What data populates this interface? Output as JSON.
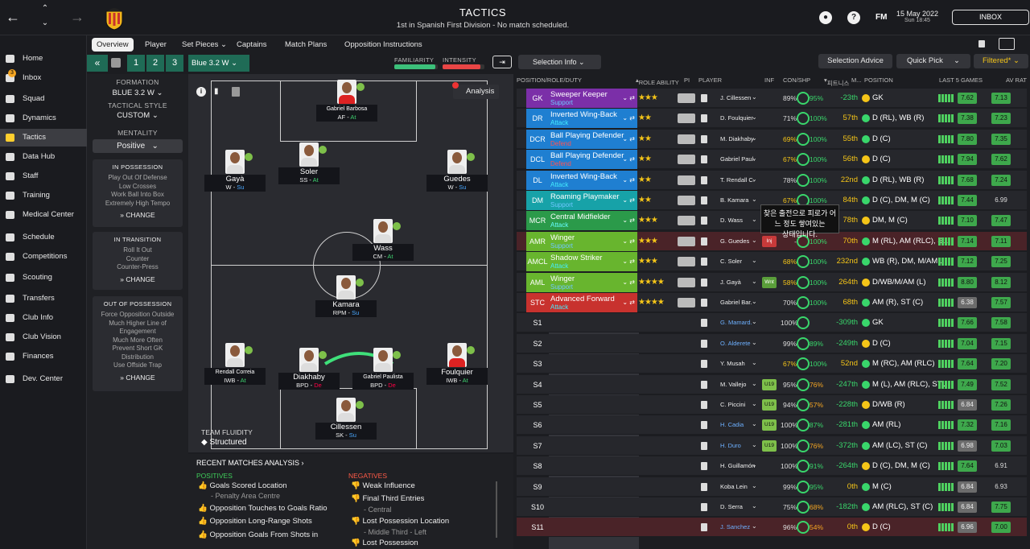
{
  "header": {
    "title": "TACTICS",
    "subtitle": "1st in Spanish First Division - No match scheduled.",
    "date": "15 May 2022",
    "time": "Sun 18:45",
    "fm": "FM",
    "inbox": "INBOX"
  },
  "sidebar": [
    {
      "label": "Home"
    },
    {
      "label": "Inbox",
      "badge": "3"
    },
    {
      "label": "Squad"
    },
    {
      "label": "Dynamics"
    },
    {
      "label": "Tactics"
    },
    {
      "label": "Data Hub"
    },
    {
      "label": "Staff"
    },
    {
      "label": "Training"
    },
    {
      "label": "Medical Center"
    },
    {
      "label": "Schedule"
    },
    {
      "label": "Competitions"
    },
    {
      "label": "Scouting"
    },
    {
      "label": "Transfers"
    },
    {
      "label": "Club Info"
    },
    {
      "label": "Club Vision"
    },
    {
      "label": "Finances"
    },
    {
      "label": "Dev. Center"
    }
  ],
  "tabs": [
    "Overview",
    "Player",
    "Set Pieces",
    "Captains",
    "Match Plans",
    "Opposition Instructions"
  ],
  "tactic": {
    "n1": "1",
    "n2": "2",
    "n3": "3",
    "name": "Blue 3.2 W",
    "familiarity": "FAMILIARITY",
    "intensity": "INTENSITY",
    "familiarity_level": 0.95,
    "intensity_level": 0.9
  },
  "left": {
    "formation_lbl": "FORMATION",
    "formation": "BLUE 3.2 W",
    "style_lbl": "TACTICAL STYLE",
    "style": "CUSTOM",
    "mentality_lbl": "MENTALITY",
    "mentality": "Positive",
    "inpos_h": "IN POSSESSION",
    "inpos": [
      "Play Out Of Defense",
      "Low Crosses",
      "Work Ball Into Box",
      "Extremely High Tempo"
    ],
    "trans_h": "IN TRANSITION",
    "trans": [
      "Roll It Out",
      "Counter",
      "Counter-Press"
    ],
    "outpos_h": "OUT OF POSSESSION",
    "outpos": [
      "Force Opposition Outside",
      "Much Higher Line of",
      "Engagement",
      "Much More Often",
      "Prevent Short GK",
      "Distribution",
      "Use Offside Trap"
    ],
    "change": "CHANGE"
  },
  "pitch": {
    "analysis": "Analysis",
    "fluidity_lbl": "TEAM FLUIDITY",
    "fluidity": "Structured",
    "players": [
      {
        "name": "Gabriel Barbosa",
        "role": "AF",
        "duty": "At"
      },
      {
        "name": "Gayà",
        "role": "W",
        "duty": "Su"
      },
      {
        "name": "Soler",
        "role": "SS",
        "duty": "At"
      },
      {
        "name": "Guedes",
        "role": "W",
        "duty": "Su"
      },
      {
        "name": "Wass",
        "role": "CM",
        "duty": "At"
      },
      {
        "name": "Kamara",
        "role": "RPM",
        "duty": "Su"
      },
      {
        "name": "Rendall Correia",
        "role": "IWB",
        "duty": "At"
      },
      {
        "name": "Diakhaby",
        "role": "BPD",
        "duty": "De"
      },
      {
        "name": "Gabriel Paulista",
        "role": "BPD",
        "duty": "De"
      },
      {
        "name": "Foulquier",
        "role": "IWB",
        "duty": "At"
      },
      {
        "name": "Cillessen",
        "role": "SK",
        "duty": "Su"
      }
    ]
  },
  "recent": {
    "title": "RECENT MATCHES ANALYSIS",
    "pos_h": "POSITIVES",
    "neg_h": "NEGATIVES",
    "positives": [
      "Goals Scored Location",
      "Opposition Touches to Goals Ratio",
      "Opposition Long-Range Shots",
      "Opposition Goals From Shots in"
    ],
    "pos_sub": "- Penalty Area Centre",
    "negatives": [
      "Weak Influence",
      "Final Third Entries",
      "Lost Possession Location",
      "Lost Possession"
    ],
    "neg_sub1": "- Central",
    "neg_sub2": "- Middle Third - Left"
  },
  "right": {
    "selection_info": "Selection Info",
    "advice": "Selection Advice",
    "quick": "Quick Pick",
    "filtered": "Filtered*",
    "cols": {
      "c1": "POSITION/ROLE/DUTY",
      "c2": "ROLE ABILITY",
      "c3": "PI",
      "c4": "PLAYER",
      "c5": "INF",
      "c6": "CON/SHP",
      "c7": "피트니스",
      "c8": "M...",
      "c9": "POSITION",
      "c10": "LAST 5 GAMES",
      "c11": "AV RAT"
    },
    "tooltip1": "찾은 출전으로 피로가 어느 정도 쌓여있는",
    "tooltip2": "상태입니다."
  },
  "rows": [
    {
      "pos": "GK",
      "role": "Sweeper Keeper",
      "duty": "Support",
      "stars": "★★★",
      "player": "J. Cillessen",
      "inf": "",
      "con": "89%",
      "shp": "95%",
      "rank": "-23th",
      "pos_txt": "GK",
      "l5": "7.62",
      "av": "7.13",
      "color": "#7b2fa8",
      "dcol": "#6ec7ff"
    },
    {
      "pos": "DR",
      "role": "Inverted Wing-Back",
      "duty": "Attack",
      "stars": "★★",
      "player": "D. Foulquier",
      "inf": "",
      "con": "71%",
      "shp": "100%",
      "rank": "57th",
      "pos_txt": "D (RL), WB (R)",
      "l5": "7.38",
      "av": "7.23",
      "color": "#1f7fd1",
      "dcol": "#4ef"
    },
    {
      "pos": "DCR",
      "role": "Ball Playing Defender",
      "duty": "Defend",
      "stars": "★★",
      "player": "M. Diakhaby",
      "inf": "",
      "con": "69%",
      "shp": "100%",
      "rank": "55th",
      "pos_txt": "D (C)",
      "l5": "7.80",
      "av": "7.35",
      "color": "#1f7fd1",
      "dcol": "#ff5252"
    },
    {
      "pos": "DCL",
      "role": "Ball Playing Defender",
      "duty": "Defend",
      "stars": "★★",
      "player": "Gabriel Paul.",
      "inf": "",
      "con": "67%",
      "shp": "100%",
      "rank": "56th",
      "pos_txt": "D (C)",
      "l5": "7.94",
      "av": "7.62",
      "color": "#1f7fd1",
      "dcol": "#ff5252"
    },
    {
      "pos": "DL",
      "role": "Inverted Wing-Back",
      "duty": "Attack",
      "stars": "★★",
      "player": "T. Rendall C.",
      "inf": "",
      "con": "78%",
      "shp": "100%",
      "rank": "22nd",
      "pos_txt": "D (RL), WB (R)",
      "l5": "7.68",
      "av": "7.24",
      "color": "#1f7fd1",
      "dcol": "#4ef"
    },
    {
      "pos": "DM",
      "role": "Roaming Playmaker",
      "duty": "Support",
      "stars": "★★",
      "player": "B. Kamara",
      "inf": "",
      "con": "67%",
      "shp": "100%",
      "rank": "84th",
      "pos_txt": "D (C), DM, M (C)",
      "l5": "7.44",
      "av": "6.99",
      "color": "#17a2a8",
      "dcol": "#6ec7ff"
    },
    {
      "pos": "MCR",
      "role": "Central Midfielder",
      "duty": "Attack",
      "stars": "★★★",
      "player": "D. Wass",
      "inf": "",
      "con": "67%",
      "shp": "100%",
      "rank": "78th",
      "pos_txt": "DM, M (C)",
      "l5": "7.10",
      "av": "7.47",
      "color": "#2b9a4a",
      "dcol": "#6ff"
    },
    {
      "pos": "AMR",
      "role": "Winger",
      "duty": "Support",
      "stars": "★★★",
      "player": "G. Guedes",
      "inf": "Inj",
      "con": "-",
      "shp": "100%",
      "rank": "70th",
      "pos_txt": "M (RL), AM (RLC), S...",
      "l5": "7.14",
      "av": "7.11",
      "color": "#68b52e",
      "dcol": "#6ec7ff",
      "hl": true
    },
    {
      "pos": "AMCL",
      "role": "Shadow Striker",
      "duty": "Attack",
      "stars": "★★★",
      "player": "C. Soler",
      "inf": "",
      "con": "68%",
      "shp": "100%",
      "rank": "232nd",
      "pos_txt": "WB (R), DM, M/AM...",
      "l5": "7.12",
      "av": "7.25",
      "color": "#68b52e",
      "dcol": "#4ef"
    },
    {
      "pos": "AML",
      "role": "Winger",
      "duty": "Support",
      "stars": "★★★★",
      "player": "J. Gayà",
      "inf": "Wnt",
      "con": "58%",
      "shp": "100%",
      "rank": "264th",
      "pos_txt": "D/WB/M/AM (L)",
      "l5": "8.80",
      "av": "8.12",
      "color": "#68b52e",
      "dcol": "#6ec7ff"
    },
    {
      "pos": "STC",
      "role": "Advanced Forward",
      "duty": "Attack",
      "stars": "★★★★",
      "player": "Gabriel Bar.",
      "inf": "",
      "con": "70%",
      "shp": "100%",
      "rank": "68th",
      "pos_txt": "AM (R), ST (C)",
      "l5": "6.38",
      "av": "7.57",
      "color": "#c8322e",
      "dcol": "#4ef"
    },
    {
      "pos": "S1",
      "player": "G. Mamard.",
      "blue": true,
      "con": "100%",
      "shp": "",
      "rank": "-309th",
      "pos_txt": "GK",
      "l5": "7.66",
      "av": "7.58"
    },
    {
      "pos": "S2",
      "player": "O. Alderete",
      "blue": true,
      "con": "99%",
      "shp": "89%",
      "rank": "-249th",
      "pos_txt": "D (C)",
      "l5": "7.04",
      "av": "7.15"
    },
    {
      "pos": "S3",
      "player": "Y. Musah",
      "con": "67%",
      "shp": "100%",
      "rank": "52nd",
      "pos_txt": "M (RC), AM (RLC)",
      "l5": "7.64",
      "av": "7.20"
    },
    {
      "pos": "S4",
      "player": "M. Vallejo",
      "inf": "U19",
      "con": "95%",
      "shp": "76%",
      "rank": "-247th",
      "pos_txt": "M (L), AM (RLC), ST...",
      "l5": "7.49",
      "av": "7.52"
    },
    {
      "pos": "S5",
      "player": "C. Piccini",
      "inf": "U19",
      "con": "94%",
      "shp": "57%",
      "rank": "-228th",
      "pos_txt": "D/WB (R)",
      "l5": "6.84",
      "av": "7.26"
    },
    {
      "pos": "S6",
      "player": "H. Cadia",
      "blue": true,
      "inf": "U19",
      "con": "100%",
      "shp": "87%",
      "rank": "-281th",
      "pos_txt": "AM (RL)",
      "l5": "7.32",
      "av": "7.16"
    },
    {
      "pos": "S7",
      "player": "H. Duro",
      "blue": true,
      "inf": "U19",
      "con": "100%",
      "shp": "76%",
      "rank": "-372th",
      "pos_txt": "AM (LC), ST (C)",
      "l5": "6.98",
      "av": "7.03"
    },
    {
      "pos": "S8",
      "player": "H. Guillamón",
      "con": "100%",
      "shp": "91%",
      "rank": "-264th",
      "pos_txt": "D (C), DM, M (C)",
      "l5": "7.64",
      "av": "6.91"
    },
    {
      "pos": "S9",
      "player": "Koba Lein",
      "con": "99%",
      "shp": "95%",
      "rank": "0th",
      "pos_txt": "M (C)",
      "l5": "6.84",
      "av": "6.93"
    },
    {
      "pos": "S10",
      "player": "D. Serra",
      "con": "75%",
      "shp": "68%",
      "rank": "-182th",
      "pos_txt": "AM (RLC), ST (C)",
      "l5": "6.84",
      "av": "7.75"
    },
    {
      "pos": "S11",
      "player": "J. Sanchez",
      "blue": true,
      "con": "96%",
      "shp": "54%",
      "rank": "0th",
      "pos_txt": "D (C)",
      "l5": "6.96",
      "av": "7.00",
      "hl": true
    }
  ]
}
